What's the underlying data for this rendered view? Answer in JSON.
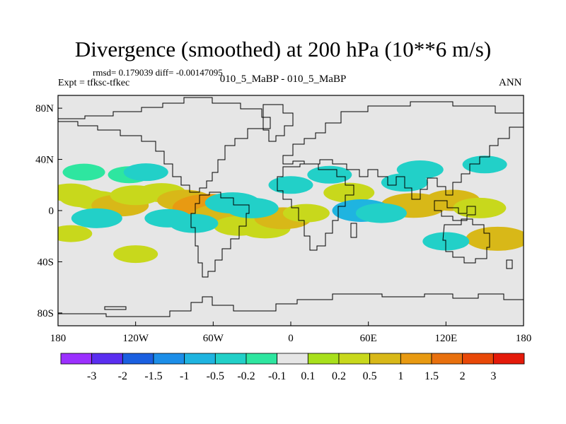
{
  "title": "Divergence (smoothed) at 200 hPa (10**6 m/s)",
  "stats_text": "rmsd= 0.179039 diff= -0.00147095",
  "expt_text": "Expt = tfksc-tfkec",
  "case_text": "010_5_MaBP - 010_5_MaBP",
  "season_text": "ANN",
  "chart_data": {
    "type": "contour-map",
    "title": "Divergence (smoothed) at 200 hPa (10**6 m/s)",
    "units": "10**6 m/s",
    "level_hPa": 200,
    "rmsd": 0.179039,
    "diff": -0.00147095,
    "xlim": [
      -180,
      180
    ],
    "ylim": [
      -90,
      90
    ],
    "x_ticks": [
      {
        "value": -180,
        "label": "180"
      },
      {
        "value": -120,
        "label": "120W"
      },
      {
        "value": -60,
        "label": "60W"
      },
      {
        "value": 0,
        "label": "0"
      },
      {
        "value": 60,
        "label": "60E"
      },
      {
        "value": 120,
        "label": "120E"
      },
      {
        "value": 180,
        "label": "180"
      }
    ],
    "y_ticks": [
      {
        "value": 80,
        "label": "80N"
      },
      {
        "value": 40,
        "label": "40N"
      },
      {
        "value": 0,
        "label": "0"
      },
      {
        "value": -40,
        "label": "40S"
      },
      {
        "value": -80,
        "label": "80S"
      }
    ],
    "colorbar": {
      "levels": [
        "-3",
        "-2",
        "-1.5",
        "-1",
        "-0.5",
        "-0.2",
        "-0.1",
        "0.1",
        "0.2",
        "0.5",
        "1",
        "1.5",
        "2",
        "3"
      ],
      "colors": [
        "#9b30ff",
        "#5a2ef0",
        "#1a5fe0",
        "#1c8ee8",
        "#1fb4e0",
        "#22d0c8",
        "#2ee6a0",
        "#e6e6e6",
        "#a8e01c",
        "#c8d81c",
        "#d8b818",
        "#e89a12",
        "#e8700e",
        "#e84808",
        "#e41a0a"
      ]
    },
    "features": [
      {
        "lon": -170,
        "lat": 14,
        "value": 0.3
      },
      {
        "lon": -160,
        "lat": 10,
        "value": 0.35
      },
      {
        "lon": -150,
        "lat": 8,
        "value": 0.35
      },
      {
        "lon": -132,
        "lat": 4,
        "value": 0.55
      },
      {
        "lon": -120,
        "lat": 12,
        "value": 0.4
      },
      {
        "lon": -100,
        "lat": 14,
        "value": 0.35
      },
      {
        "lon": -82,
        "lat": 8,
        "value": 0.5
      },
      {
        "lon": -62,
        "lat": 2,
        "value": 1.0
      },
      {
        "lon": -52,
        "lat": -4,
        "value": 0.7
      },
      {
        "lon": -40,
        "lat": -12,
        "value": 0.4
      },
      {
        "lon": -20,
        "lat": -14,
        "value": 0.4
      },
      {
        "lon": -6,
        "lat": -6,
        "value": 0.55
      },
      {
        "lon": 12,
        "lat": -2,
        "value": 0.3
      },
      {
        "lon": 45,
        "lat": 14,
        "value": 0.4
      },
      {
        "lon": 95,
        "lat": 4,
        "value": 0.75
      },
      {
        "lon": 125,
        "lat": 8,
        "value": 0.5
      },
      {
        "lon": 146,
        "lat": 2,
        "value": 0.45
      },
      {
        "lon": 160,
        "lat": -22,
        "value": 0.7
      },
      {
        "lon": -120,
        "lat": -34,
        "value": 0.25
      },
      {
        "lon": -170,
        "lat": -18,
        "value": 0.2
      },
      {
        "lon": -160,
        "lat": 30,
        "value": -0.2
      },
      {
        "lon": -125,
        "lat": 28,
        "value": -0.2
      },
      {
        "lon": -112,
        "lat": 30,
        "value": -0.25
      },
      {
        "lon": -150,
        "lat": -6,
        "value": -0.4
      },
      {
        "lon": -95,
        "lat": -6,
        "value": -0.3
      },
      {
        "lon": -75,
        "lat": -10,
        "value": -0.35
      },
      {
        "lon": -45,
        "lat": 6,
        "value": -0.5
      },
      {
        "lon": -30,
        "lat": 2,
        "value": -0.45
      },
      {
        "lon": 0,
        "lat": 20,
        "value": -0.25
      },
      {
        "lon": 30,
        "lat": 28,
        "value": -0.25
      },
      {
        "lon": 55,
        "lat": 0,
        "value": -0.6
      },
      {
        "lon": 70,
        "lat": -2,
        "value": -0.4
      },
      {
        "lon": 88,
        "lat": 22,
        "value": -0.3
      },
      {
        "lon": 100,
        "lat": 32,
        "value": -0.3
      },
      {
        "lon": 120,
        "lat": -24,
        "value": -0.3
      },
      {
        "lon": 150,
        "lat": 36,
        "value": -0.25
      }
    ]
  }
}
